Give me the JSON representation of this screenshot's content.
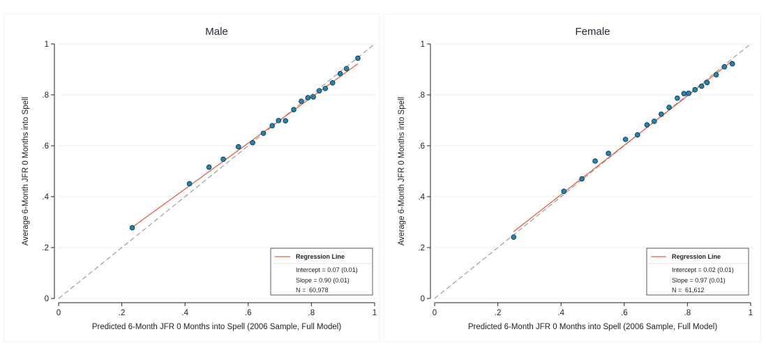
{
  "colors": {
    "points": "#1a86b5",
    "point_edge": "#0b2f45",
    "regression": "#e8603c",
    "diagonal": "#8c8c8c",
    "grid": "#ececec",
    "axis": "#222222"
  },
  "chart_data": [
    {
      "type": "scatter",
      "title": "Male",
      "xlabel": "Predicted 6-Month JFR 0 Months into Spell (2006 Sample, Full Model)",
      "ylabel": "Average 6-Month JFR 0 Months into Spell",
      "xlim": [
        0,
        1
      ],
      "ylim": [
        0,
        1
      ],
      "xticks": [
        0,
        0.2,
        0.4,
        0.6,
        0.8,
        1
      ],
      "yticks": [
        0,
        0.2,
        0.4,
        0.6,
        0.8,
        1
      ],
      "xtick_labels": [
        "0",
        ".2",
        ".4",
        ".6",
        ".8",
        "1"
      ],
      "ytick_labels": [
        "0",
        ".2",
        ".4",
        ".6",
        ".8",
        "1"
      ],
      "grid": true,
      "diagonal": true,
      "points": [
        [
          0.233,
          0.278
        ],
        [
          0.414,
          0.451
        ],
        [
          0.476,
          0.516
        ],
        [
          0.521,
          0.547
        ],
        [
          0.569,
          0.596
        ],
        [
          0.614,
          0.612
        ],
        [
          0.648,
          0.649
        ],
        [
          0.676,
          0.679
        ],
        [
          0.696,
          0.699
        ],
        [
          0.718,
          0.698
        ],
        [
          0.744,
          0.742
        ],
        [
          0.768,
          0.775
        ],
        [
          0.789,
          0.789
        ],
        [
          0.806,
          0.792
        ],
        [
          0.825,
          0.816
        ],
        [
          0.844,
          0.825
        ],
        [
          0.867,
          0.847
        ],
        [
          0.891,
          0.883
        ],
        [
          0.911,
          0.903
        ],
        [
          0.947,
          0.944
        ]
      ],
      "regression": {
        "x_range": [
          0.233,
          0.947
        ],
        "intercept": 0.07,
        "slope": 0.9
      },
      "legend": {
        "placement": "bottom-right",
        "title": "Regression Line",
        "intercept_text": "Intercept = 0.07 (0.01)",
        "slope_text": "Slope = 0.90 (0.01)",
        "n_label": "N =",
        "n_value": "60,978"
      }
    },
    {
      "type": "scatter",
      "title": "Female",
      "xlabel": "Predicted 6-Month JFR 0 Months into Spell (2006 Sample, Full Model)",
      "ylabel": "Average 6-Month JFR 0 Months into Spell",
      "xlim": [
        0,
        1
      ],
      "ylim": [
        0,
        1
      ],
      "xticks": [
        0,
        0.2,
        0.4,
        0.6,
        0.8,
        1
      ],
      "yticks": [
        0,
        0.2,
        0.4,
        0.6,
        0.8,
        1
      ],
      "xtick_labels": [
        "0",
        ".2",
        ".4",
        ".6",
        ".8",
        "1"
      ],
      "ytick_labels": [
        "0",
        ".2",
        ".4",
        ".6",
        ".8",
        "1"
      ],
      "grid": true,
      "diagonal": true,
      "points": [
        [
          0.25,
          0.241
        ],
        [
          0.409,
          0.421
        ],
        [
          0.466,
          0.47
        ],
        [
          0.508,
          0.54
        ],
        [
          0.55,
          0.57
        ],
        [
          0.604,
          0.625
        ],
        [
          0.642,
          0.643
        ],
        [
          0.672,
          0.682
        ],
        [
          0.695,
          0.696
        ],
        [
          0.717,
          0.724
        ],
        [
          0.742,
          0.751
        ],
        [
          0.768,
          0.787
        ],
        [
          0.789,
          0.805
        ],
        [
          0.804,
          0.806
        ],
        [
          0.824,
          0.82
        ],
        [
          0.845,
          0.834
        ],
        [
          0.862,
          0.848
        ],
        [
          0.891,
          0.879
        ],
        [
          0.917,
          0.91
        ],
        [
          0.942,
          0.922
        ]
      ],
      "regression": {
        "x_range": [
          0.25,
          0.942
        ],
        "intercept": 0.02,
        "slope": 0.97
      },
      "legend": {
        "placement": "bottom-right",
        "title": "Regression Line",
        "intercept_text": "Intercept = 0.02 (0.01)",
        "slope_text": "Slope = 0.97 (0.01)",
        "n_label": "N =",
        "n_value": "61,612"
      }
    }
  ]
}
